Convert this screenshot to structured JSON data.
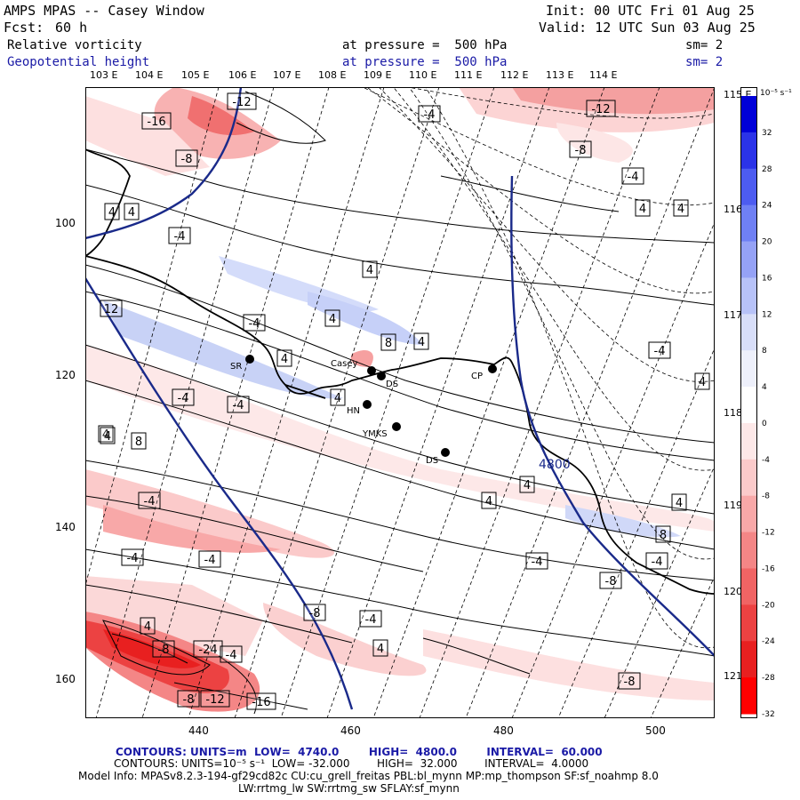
{
  "header": {
    "title": "AMPS MPAS -- Casey Window",
    "init": "Init: 00 UTC Fri 01 Aug 25",
    "fcst_label": "Fcst:",
    "fcst_value": "60 h",
    "valid": "Valid: 12 UTC Sun 03 Aug 25",
    "field1": "Relative vorticity",
    "field1_level": "at pressure =  500 hPa",
    "field1_sm": "sm= 2",
    "field2": "Geopotential height",
    "field2_level": "at pressure =  500 hPa",
    "field2_sm": "sm= 2"
  },
  "top_lon_labels": [
    "103 E",
    "104 E",
    "105 E",
    "106 E",
    "107 E",
    "108 E",
    "109 E",
    "110 E",
    "111 E",
    "112 E",
    "113 E",
    "114 E"
  ],
  "right_lon_labels": [
    "115 E",
    "116 E",
    "117 E",
    "118 E",
    "119 E",
    "120 E",
    "121 E"
  ],
  "y_axis_labels": [
    "100",
    "120",
    "140",
    "160"
  ],
  "x_axis_labels": [
    "440",
    "460",
    "480",
    "500"
  ],
  "stations": [
    {
      "name": "SR"
    },
    {
      "name": "Casey"
    },
    {
      "name": "DS"
    },
    {
      "name": "HN"
    },
    {
      "name": "YMKS"
    },
    {
      "name": "CP"
    },
    {
      "name": "DS"
    }
  ],
  "height_contour_label": "4800",
  "vort_labels": [
    "-16",
    "-12",
    "-12",
    "-4",
    "-8",
    "-8",
    "-4",
    "4",
    "4",
    "-4",
    "4",
    "4",
    "4",
    "4",
    "4",
    "12",
    "-4",
    "8",
    "4",
    "4",
    "-4",
    "8",
    "4",
    "-4",
    "-4",
    "4",
    "4",
    "4",
    "-4",
    "4",
    "4",
    "-4",
    "-4",
    "-8",
    "-4",
    "-4",
    "8",
    "4",
    "-8",
    "-4",
    "4",
    "-8",
    "-24",
    "-4",
    "-8",
    "-12",
    "-16",
    "-8"
  ],
  "colorbar": {
    "units": "10⁻⁵ s⁻¹",
    "ticks": [
      "32",
      "28",
      "24",
      "20",
      "16",
      "12",
      "8",
      "4",
      "0",
      "-4",
      "-8",
      "-12",
      "-16",
      "-20",
      "-24",
      "-28",
      "-32"
    ],
    "colors": [
      "#0000d8",
      "#2b33e8",
      "#4d5cf0",
      "#6f80f4",
      "#95a2f6",
      "#b7c2f8",
      "#d8def9",
      "#eef0fb",
      "#ffffff",
      "#fde8e8",
      "#fbcaca",
      "#f8a8a8",
      "#f48686",
      "#f06464",
      "#ec4242",
      "#e82020",
      "#ff0000"
    ]
  },
  "footer": {
    "line1": "CONTOURS: UNITS=m  LOW=  4740.0        HIGH=  4800.0        INTERVAL=  60.000",
    "line2": "CONTOURS: UNITS=10⁻⁵ s⁻¹  LOW= -32.000        HIGH=  32.000        INTERVAL=  4.0000",
    "line3": "Model Info: MPASv8.2.3-194-gf29cd82c CU:cu_grell_freitas PBL:bl_mynn MP:mp_thompson SF:sf_noahmp 8.0",
    "line4": "LW:rrtmg_lw SW:rrtmg_sw SFLAY:sf_mynn"
  }
}
